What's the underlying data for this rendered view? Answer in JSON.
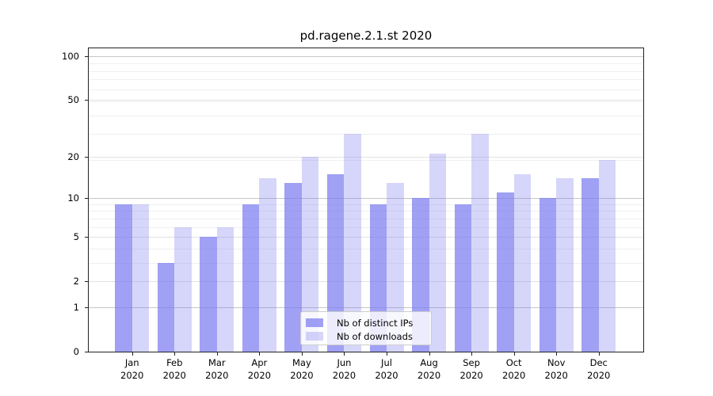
{
  "chart_data": {
    "type": "bar",
    "title": "pd.ragene.2.1.st 2020",
    "categories": [
      "Jan",
      "Feb",
      "Mar",
      "Apr",
      "May",
      "Jun",
      "Jul",
      "Aug",
      "Sep",
      "Oct",
      "Nov",
      "Dec"
    ],
    "x_year": "2020",
    "series": [
      {
        "name": "Nb of distinct IPs",
        "color": "rgba(120,120,240,0.7)",
        "values": [
          9,
          3,
          5,
          9,
          13,
          15,
          9,
          10,
          9,
          11,
          10,
          14
        ]
      },
      {
        "name": "Nb of downloads",
        "color": "rgba(120,120,240,0.3)",
        "values": [
          9,
          6,
          6,
          14,
          20,
          29,
          13,
          21,
          29,
          15,
          14,
          19
        ]
      }
    ],
    "y_ticks": [
      0,
      1,
      2,
      5,
      10,
      20,
      50,
      100
    ],
    "y_scale": "log10(value+1)",
    "y_max": 113,
    "grid": true,
    "legend_position": "lower center"
  }
}
